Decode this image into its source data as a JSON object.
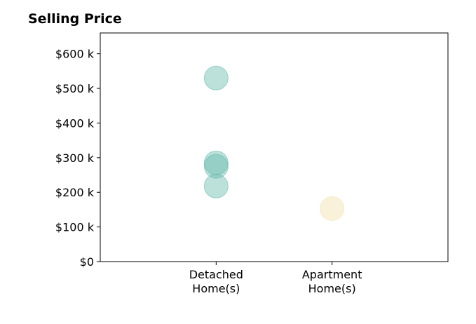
{
  "chart_data": {
    "type": "scatter",
    "title": "Selling Price",
    "xlabel": "",
    "ylabel": "",
    "categories": [
      "Detached Home(s)",
      "Apartment Home(s)"
    ],
    "category_lines": [
      [
        "Detached",
        "Home(s)"
      ],
      [
        "Apartment",
        "Home(s)"
      ]
    ],
    "xlim": [
      -1,
      2
    ],
    "ylim": [
      0,
      660000
    ],
    "yticks": [
      0,
      100000,
      200000,
      300000,
      400000,
      500000,
      600000
    ],
    "ytick_labels": [
      "$0",
      "$100 k",
      "$200 k",
      "$300 k",
      "$400 k",
      "$500 k",
      "$600 k"
    ],
    "grid": false,
    "legend": "none",
    "series": [
      {
        "category": "Detached Home(s)",
        "color": "#5fb8aa",
        "values": [
          530000,
          285000,
          275000,
          218000
        ]
      },
      {
        "category": "Apartment Home(s)",
        "color": "#f3dea8",
        "values": [
          153000
        ]
      }
    ]
  }
}
